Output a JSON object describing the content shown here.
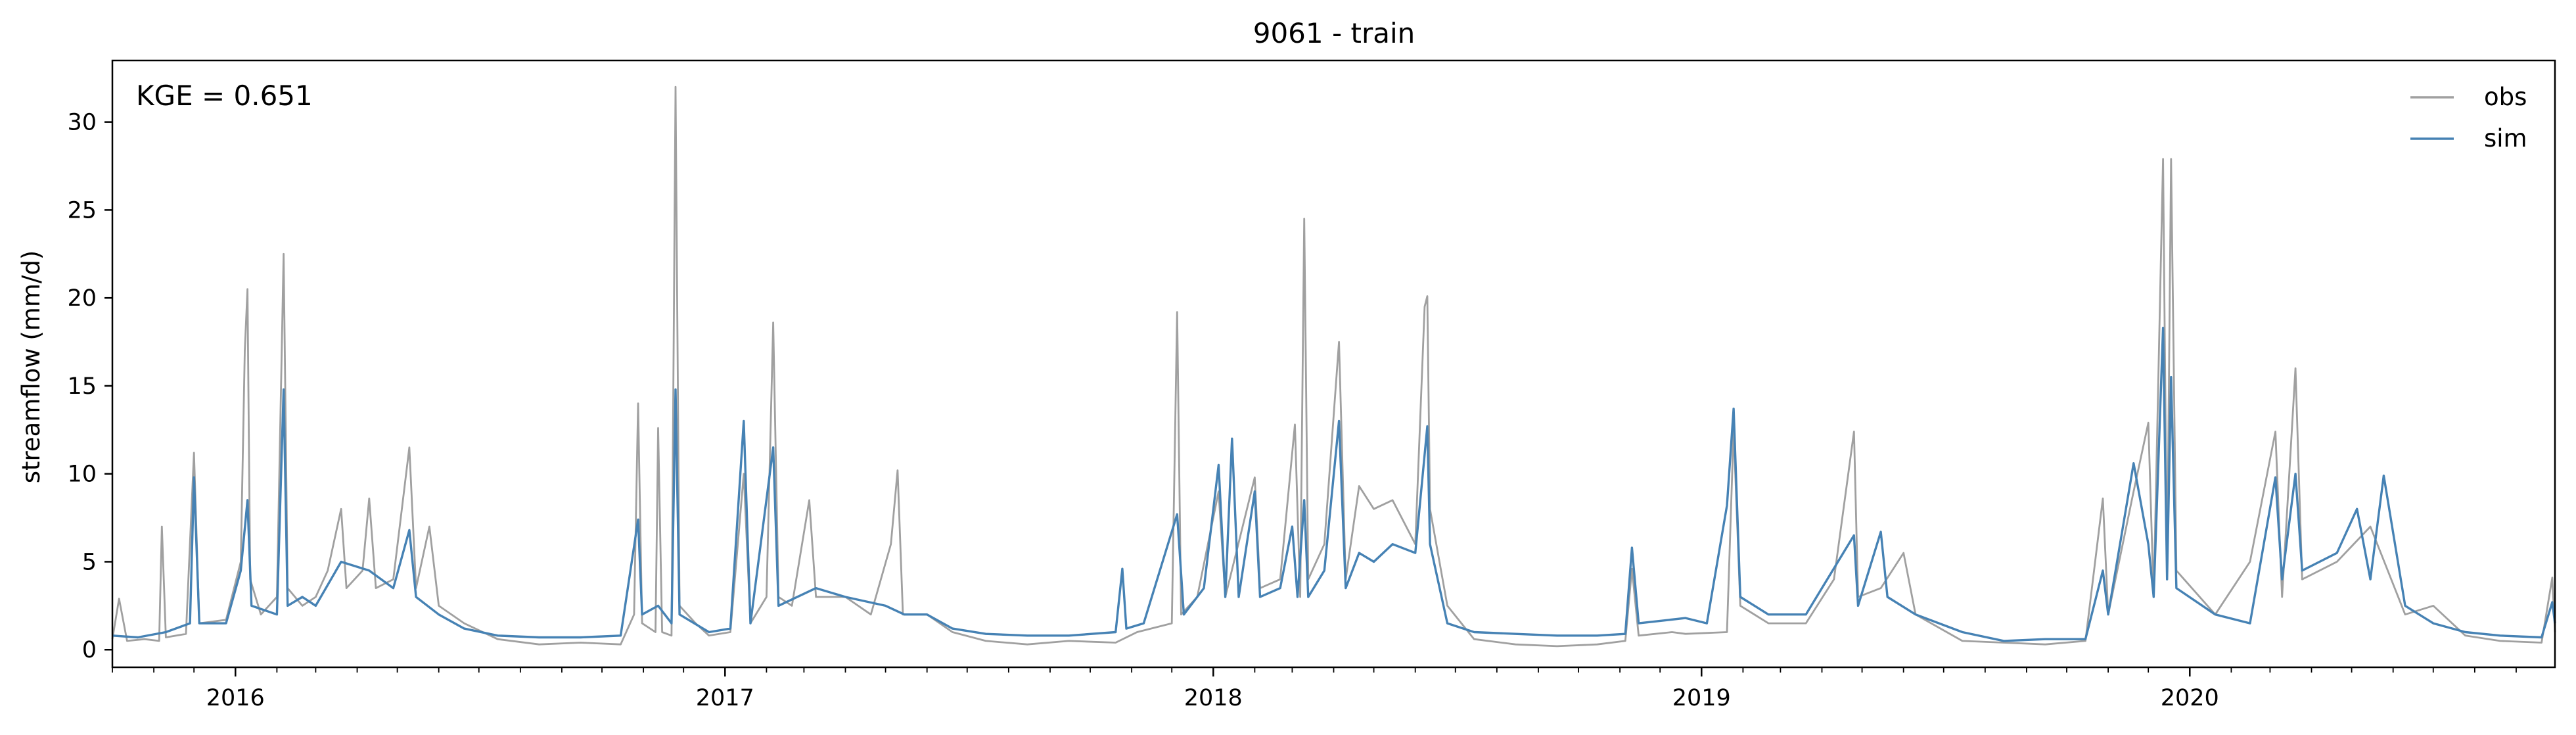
{
  "chart_data": {
    "type": "line",
    "title": "9061 - train",
    "xlabel": "",
    "ylabel": "streamflow (mm/d)",
    "annotation": "KGE = 0.651",
    "x_range": [
      "2015-10-01",
      "2020-09-30"
    ],
    "ylim": [
      -1,
      33.5
    ],
    "y_ticks": [
      0,
      5,
      10,
      15,
      20,
      25,
      30
    ],
    "x_tick_labels": [
      "2016",
      "2017",
      "2018",
      "2019",
      "2020"
    ],
    "x_tick_dates": [
      "2016-01-01",
      "2017-01-01",
      "2018-01-01",
      "2019-01-01",
      "2020-01-01"
    ],
    "grid": false,
    "legend": "top-right",
    "colors": {
      "obs": "#a0a0a0",
      "sim": "#4682b4"
    },
    "series": [
      {
        "name": "obs",
        "points": [
          [
            "2015-10-01",
            0.6
          ],
          [
            "2015-10-06",
            2.9
          ],
          [
            "2015-10-12",
            0.5
          ],
          [
            "2015-10-25",
            0.6
          ],
          [
            "2015-11-05",
            0.5
          ],
          [
            "2015-11-07",
            7.0
          ],
          [
            "2015-11-10",
            0.7
          ],
          [
            "2015-11-25",
            0.9
          ],
          [
            "2015-12-01",
            11.2
          ],
          [
            "2015-12-05",
            1.5
          ],
          [
            "2015-12-25",
            1.7
          ],
          [
            "2016-01-05",
            5.0
          ],
          [
            "2016-01-08",
            17.0
          ],
          [
            "2016-01-10",
            20.5
          ],
          [
            "2016-01-12",
            4.0
          ],
          [
            "2016-01-20",
            2.0
          ],
          [
            "2016-02-01",
            3.0
          ],
          [
            "2016-02-06",
            22.5
          ],
          [
            "2016-02-09",
            3.5
          ],
          [
            "2016-02-20",
            2.5
          ],
          [
            "2016-03-01",
            3.0
          ],
          [
            "2016-03-10",
            4.5
          ],
          [
            "2016-03-20",
            8.0
          ],
          [
            "2016-03-24",
            3.5
          ],
          [
            "2016-04-05",
            4.5
          ],
          [
            "2016-04-10",
            8.6
          ],
          [
            "2016-04-15",
            3.5
          ],
          [
            "2016-04-28",
            4.0
          ],
          [
            "2016-05-10",
            11.5
          ],
          [
            "2016-05-15",
            3.5
          ],
          [
            "2016-05-25",
            7.0
          ],
          [
            "2016-06-01",
            2.5
          ],
          [
            "2016-06-20",
            1.5
          ],
          [
            "2016-07-15",
            0.6
          ],
          [
            "2016-08-15",
            0.3
          ],
          [
            "2016-09-15",
            0.4
          ],
          [
            "2016-10-15",
            0.3
          ],
          [
            "2016-10-25",
            2.0
          ],
          [
            "2016-10-28",
            14.0
          ],
          [
            "2016-10-31",
            1.5
          ],
          [
            "2016-11-10",
            1.0
          ],
          [
            "2016-11-12",
            12.6
          ],
          [
            "2016-11-15",
            1.0
          ],
          [
            "2016-11-22",
            0.8
          ],
          [
            "2016-11-25",
            32.0
          ],
          [
            "2016-11-28",
            2.5
          ],
          [
            "2016-12-10",
            1.5
          ],
          [
            "2016-12-20",
            0.8
          ],
          [
            "2017-01-05",
            1.0
          ],
          [
            "2017-01-15",
            10.0
          ],
          [
            "2017-01-20",
            1.5
          ],
          [
            "2017-02-01",
            3.0
          ],
          [
            "2017-02-06",
            18.6
          ],
          [
            "2017-02-10",
            3.0
          ],
          [
            "2017-02-20",
            2.5
          ],
          [
            "2017-03-05",
            8.5
          ],
          [
            "2017-03-10",
            3.0
          ],
          [
            "2017-04-01",
            3.0
          ],
          [
            "2017-04-20",
            2.0
          ],
          [
            "2017-05-05",
            6.0
          ],
          [
            "2017-05-10",
            10.2
          ],
          [
            "2017-05-14",
            2.0
          ],
          [
            "2017-06-01",
            2.0
          ],
          [
            "2017-06-20",
            1.0
          ],
          [
            "2017-07-15",
            0.5
          ],
          [
            "2017-08-15",
            0.3
          ],
          [
            "2017-09-15",
            0.5
          ],
          [
            "2017-10-20",
            0.4
          ],
          [
            "2017-11-05",
            1.0
          ],
          [
            "2017-12-01",
            1.5
          ],
          [
            "2017-12-05",
            19.2
          ],
          [
            "2017-12-08",
            2.0
          ],
          [
            "2017-12-20",
            3.0
          ],
          [
            "2018-01-05",
            9.0
          ],
          [
            "2018-01-10",
            3.0
          ],
          [
            "2018-02-01",
            9.8
          ],
          [
            "2018-02-05",
            3.5
          ],
          [
            "2018-02-20",
            4.0
          ],
          [
            "2018-03-03",
            12.8
          ],
          [
            "2018-03-07",
            3.0
          ],
          [
            "2018-03-10",
            24.5
          ],
          [
            "2018-03-13",
            4.0
          ],
          [
            "2018-03-25",
            6.0
          ],
          [
            "2018-04-05",
            17.5
          ],
          [
            "2018-04-10",
            4.0
          ],
          [
            "2018-04-20",
            9.3
          ],
          [
            "2018-05-01",
            8.0
          ],
          [
            "2018-05-15",
            8.5
          ],
          [
            "2018-06-01",
            6.0
          ],
          [
            "2018-06-08",
            19.5
          ],
          [
            "2018-06-10",
            20.1
          ],
          [
            "2018-06-12",
            8.0
          ],
          [
            "2018-06-25",
            2.5
          ],
          [
            "2018-07-15",
            0.6
          ],
          [
            "2018-08-15",
            0.3
          ],
          [
            "2018-09-15",
            0.2
          ],
          [
            "2018-10-15",
            0.3
          ],
          [
            "2018-11-05",
            0.5
          ],
          [
            "2018-11-10",
            4.6
          ],
          [
            "2018-11-15",
            0.8
          ],
          [
            "2018-12-10",
            1.0
          ],
          [
            "2018-12-20",
            0.9
          ],
          [
            "2019-01-20",
            1.0
          ],
          [
            "2019-01-25",
            12.5
          ],
          [
            "2019-01-30",
            2.5
          ],
          [
            "2019-02-20",
            1.5
          ],
          [
            "2019-03-20",
            1.5
          ],
          [
            "2019-04-10",
            4.0
          ],
          [
            "2019-04-25",
            12.4
          ],
          [
            "2019-04-28",
            3.0
          ],
          [
            "2019-05-15",
            3.5
          ],
          [
            "2019-06-01",
            5.5
          ],
          [
            "2019-06-10",
            2.0
          ],
          [
            "2019-07-15",
            0.5
          ],
          [
            "2019-08-15",
            0.4
          ],
          [
            "2019-09-15",
            0.3
          ],
          [
            "2019-10-15",
            0.5
          ],
          [
            "2019-10-28",
            8.6
          ],
          [
            "2019-11-01",
            2.0
          ],
          [
            "2019-11-20",
            9.0
          ],
          [
            "2019-12-01",
            12.9
          ],
          [
            "2019-12-05",
            3.0
          ],
          [
            "2019-12-12",
            27.9
          ],
          [
            "2019-12-15",
            4.0
          ],
          [
            "2019-12-18",
            27.9
          ],
          [
            "2019-12-22",
            4.5
          ],
          [
            "2020-01-20",
            2.0
          ],
          [
            "2020-02-15",
            5.0
          ],
          [
            "2020-03-05",
            12.4
          ],
          [
            "2020-03-10",
            3.0
          ],
          [
            "2020-03-20",
            16.0
          ],
          [
            "2020-03-25",
            4.0
          ],
          [
            "2020-04-20",
            5.0
          ],
          [
            "2020-05-15",
            7.0
          ],
          [
            "2020-06-10",
            2.0
          ],
          [
            "2020-07-01",
            2.5
          ],
          [
            "2020-07-25",
            0.8
          ],
          [
            "2020-08-20",
            0.5
          ],
          [
            "2020-09-20",
            0.4
          ],
          [
            "2020-09-28",
            4.1
          ],
          [
            "2020-09-30",
            1.0
          ]
        ]
      },
      {
        "name": "sim",
        "points": [
          [
            "2015-10-01",
            0.8
          ],
          [
            "2015-10-20",
            0.7
          ],
          [
            "2015-11-10",
            1.0
          ],
          [
            "2015-11-28",
            1.5
          ],
          [
            "2015-12-01",
            9.8
          ],
          [
            "2015-12-05",
            1.5
          ],
          [
            "2015-12-25",
            1.5
          ],
          [
            "2016-01-05",
            4.5
          ],
          [
            "2016-01-10",
            8.5
          ],
          [
            "2016-01-13",
            2.5
          ],
          [
            "2016-02-01",
            2.0
          ],
          [
            "2016-02-06",
            14.8
          ],
          [
            "2016-02-09",
            2.5
          ],
          [
            "2016-02-20",
            3.0
          ],
          [
            "2016-03-01",
            2.5
          ],
          [
            "2016-03-20",
            5.0
          ],
          [
            "2016-04-10",
            4.5
          ],
          [
            "2016-04-28",
            3.5
          ],
          [
            "2016-05-10",
            6.8
          ],
          [
            "2016-05-15",
            3.0
          ],
          [
            "2016-06-01",
            2.0
          ],
          [
            "2016-06-20",
            1.2
          ],
          [
            "2016-07-15",
            0.8
          ],
          [
            "2016-08-15",
            0.7
          ],
          [
            "2016-09-15",
            0.7
          ],
          [
            "2016-10-15",
            0.8
          ],
          [
            "2016-10-28",
            7.4
          ],
          [
            "2016-10-31",
            2.0
          ],
          [
            "2016-11-12",
            2.5
          ],
          [
            "2016-11-22",
            1.5
          ],
          [
            "2016-11-25",
            14.8
          ],
          [
            "2016-11-28",
            2.0
          ],
          [
            "2016-12-20",
            1.0
          ],
          [
            "2017-01-05",
            1.2
          ],
          [
            "2017-01-15",
            13.0
          ],
          [
            "2017-01-20",
            1.5
          ],
          [
            "2017-02-06",
            11.5
          ],
          [
            "2017-02-10",
            2.5
          ],
          [
            "2017-03-10",
            3.5
          ],
          [
            "2017-04-01",
            3.0
          ],
          [
            "2017-05-01",
            2.5
          ],
          [
            "2017-05-15",
            2.0
          ],
          [
            "2017-06-01",
            2.0
          ],
          [
            "2017-06-20",
            1.2
          ],
          [
            "2017-07-15",
            0.9
          ],
          [
            "2017-08-15",
            0.8
          ],
          [
            "2017-09-15",
            0.8
          ],
          [
            "2017-10-20",
            1.0
          ],
          [
            "2017-10-25",
            4.6
          ],
          [
            "2017-10-28",
            1.2
          ],
          [
            "2017-11-10",
            1.5
          ],
          [
            "2017-12-05",
            7.7
          ],
          [
            "2017-12-10",
            2.0
          ],
          [
            "2017-12-25",
            3.5
          ],
          [
            "2018-01-05",
            10.5
          ],
          [
            "2018-01-10",
            3.0
          ],
          [
            "2018-01-15",
            12.0
          ],
          [
            "2018-01-20",
            3.0
          ],
          [
            "2018-02-01",
            9.0
          ],
          [
            "2018-02-05",
            3.0
          ],
          [
            "2018-02-20",
            3.5
          ],
          [
            "2018-03-01",
            7.0
          ],
          [
            "2018-03-05",
            3.0
          ],
          [
            "2018-03-10",
            8.5
          ],
          [
            "2018-03-13",
            3.0
          ],
          [
            "2018-03-25",
            4.5
          ],
          [
            "2018-04-05",
            13.0
          ],
          [
            "2018-04-10",
            3.5
          ],
          [
            "2018-04-20",
            5.5
          ],
          [
            "2018-05-01",
            5.0
          ],
          [
            "2018-05-15",
            6.0
          ],
          [
            "2018-06-01",
            5.5
          ],
          [
            "2018-06-10",
            12.7
          ],
          [
            "2018-06-12",
            6.0
          ],
          [
            "2018-06-25",
            1.5
          ],
          [
            "2018-07-15",
            1.0
          ],
          [
            "2018-08-15",
            0.9
          ],
          [
            "2018-09-15",
            0.8
          ],
          [
            "2018-10-15",
            0.8
          ],
          [
            "2018-11-05",
            0.9
          ],
          [
            "2018-11-10",
            5.8
          ],
          [
            "2018-11-15",
            1.5
          ],
          [
            "2018-12-20",
            1.8
          ],
          [
            "2019-01-05",
            1.5
          ],
          [
            "2019-01-20",
            8.2
          ],
          [
            "2019-01-25",
            13.7
          ],
          [
            "2019-01-30",
            3.0
          ],
          [
            "2019-02-20",
            2.0
          ],
          [
            "2019-03-20",
            2.0
          ],
          [
            "2019-04-25",
            6.5
          ],
          [
            "2019-04-28",
            2.5
          ],
          [
            "2019-05-15",
            6.7
          ],
          [
            "2019-05-20",
            3.0
          ],
          [
            "2019-06-10",
            2.0
          ],
          [
            "2019-07-15",
            1.0
          ],
          [
            "2019-08-15",
            0.5
          ],
          [
            "2019-09-15",
            0.6
          ],
          [
            "2019-10-15",
            0.6
          ],
          [
            "2019-10-28",
            4.5
          ],
          [
            "2019-11-01",
            2.0
          ],
          [
            "2019-11-20",
            10.6
          ],
          [
            "2019-12-01",
            6.0
          ],
          [
            "2019-12-05",
            3.0
          ],
          [
            "2019-12-12",
            18.3
          ],
          [
            "2019-12-15",
            4.0
          ],
          [
            "2019-12-18",
            15.5
          ],
          [
            "2019-12-22",
            3.5
          ],
          [
            "2020-01-20",
            2.0
          ],
          [
            "2020-02-15",
            1.5
          ],
          [
            "2020-03-05",
            9.8
          ],
          [
            "2020-03-10",
            4.0
          ],
          [
            "2020-03-20",
            10.0
          ],
          [
            "2020-03-25",
            4.5
          ],
          [
            "2020-04-20",
            5.5
          ],
          [
            "2020-05-05",
            8.0
          ],
          [
            "2020-05-15",
            4.0
          ],
          [
            "2020-05-25",
            9.9
          ],
          [
            "2020-06-10",
            2.5
          ],
          [
            "2020-07-01",
            1.5
          ],
          [
            "2020-07-25",
            1.0
          ],
          [
            "2020-08-20",
            0.8
          ],
          [
            "2020-09-20",
            0.7
          ],
          [
            "2020-09-28",
            2.7
          ],
          [
            "2020-09-30",
            1.5
          ]
        ]
      }
    ]
  }
}
